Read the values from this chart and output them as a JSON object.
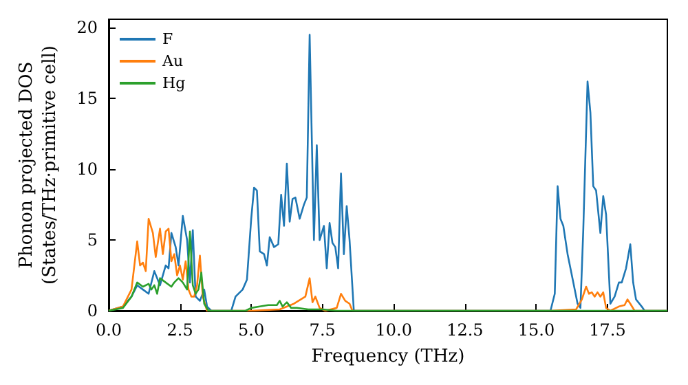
{
  "chart_data": {
    "type": "line",
    "xlabel": "Frequency (THz)",
    "ylabel": "Phonon projected DOS\n(States/THz·primitive cell)",
    "xlim": [
      0,
      19.6
    ],
    "ylim": [
      0,
      20.6
    ],
    "xticks": [
      {
        "value": 0,
        "label": "0.0"
      },
      {
        "value": 2.5,
        "label": "2.5"
      },
      {
        "value": 5,
        "label": "5.0"
      },
      {
        "value": 7.5,
        "label": "7.5"
      },
      {
        "value": 10,
        "label": "10.0"
      },
      {
        "value": 12.5,
        "label": "12.5"
      },
      {
        "value": 15,
        "label": "15.0"
      },
      {
        "value": 17.5,
        "label": "17.5"
      }
    ],
    "yticks": [
      0,
      5,
      10,
      15,
      20
    ],
    "grid": false,
    "legend": "top left",
    "marker": "none",
    "line_style": "solid",
    "series": [
      {
        "name": "F",
        "color": "#1f77b4",
        "x": [
          0,
          0.5,
          0.8,
          1.0,
          1.2,
          1.4,
          1.6,
          1.8,
          2.0,
          2.1,
          2.2,
          2.35,
          2.45,
          2.6,
          2.75,
          2.85,
          2.95,
          3.05,
          3.2,
          3.35,
          3.45,
          3.6,
          4.3,
          4.45,
          4.7,
          4.85,
          5.0,
          5.1,
          5.2,
          5.3,
          5.45,
          5.55,
          5.65,
          5.8,
          5.95,
          6.05,
          6.15,
          6.25,
          6.35,
          6.45,
          6.55,
          6.7,
          6.85,
          6.95,
          7.05,
          7.2,
          7.3,
          7.4,
          7.55,
          7.65,
          7.75,
          7.85,
          7.95,
          8.05,
          8.15,
          8.25,
          8.35,
          8.45,
          8.6,
          15.5,
          15.65,
          15.75,
          15.85,
          15.95,
          16.1,
          16.3,
          16.45,
          16.55,
          16.65,
          16.8,
          16.9,
          17.0,
          17.1,
          17.25,
          17.35,
          17.45,
          17.6,
          17.75,
          17.9,
          18.0,
          18.15,
          18.3,
          18.4,
          18.5,
          18.7,
          18.8,
          19.6
        ],
        "values": [
          0,
          0.3,
          1.0,
          1.8,
          1.5,
          1.2,
          2.8,
          1.8,
          3.2,
          3.0,
          5.5,
          4.5,
          3.2,
          6.7,
          5.0,
          2.0,
          5.7,
          1.0,
          0.7,
          1.5,
          0.3,
          0,
          0,
          1.0,
          1.5,
          2.2,
          6.5,
          8.7,
          8.5,
          4.2,
          4.0,
          3.2,
          5.2,
          4.5,
          4.7,
          8.2,
          6.0,
          10.4,
          6.3,
          7.9,
          8.0,
          6.5,
          7.5,
          8.0,
          19.5,
          5.0,
          11.7,
          5.0,
          6.0,
          3.0,
          6.2,
          4.8,
          4.5,
          3.0,
          9.7,
          4.0,
          7.4,
          5.0,
          0,
          0,
          1.2,
          8.8,
          6.5,
          6.0,
          4.0,
          2.0,
          0.5,
          0.2,
          5.7,
          16.2,
          14.0,
          8.8,
          8.5,
          5.5,
          8.1,
          6.8,
          0.5,
          1.0,
          2.0,
          2.0,
          3.0,
          4.7,
          2.0,
          0.8,
          0.3,
          0,
          0
        ]
      },
      {
        "name": "Au",
        "color": "#ff7f0e",
        "x": [
          0,
          0.5,
          0.8,
          1.0,
          1.1,
          1.2,
          1.3,
          1.4,
          1.55,
          1.65,
          1.8,
          1.9,
          2.0,
          2.1,
          2.2,
          2.3,
          2.4,
          2.5,
          2.6,
          2.7,
          2.8,
          2.9,
          3.0,
          3.1,
          3.2,
          3.3,
          3.45,
          5.0,
          6.0,
          6.5,
          6.9,
          7.05,
          7.15,
          7.25,
          7.4,
          7.6,
          8.0,
          8.15,
          8.3,
          8.45,
          8.55,
          15.5,
          16.4,
          16.6,
          16.75,
          16.85,
          16.95,
          17.05,
          17.15,
          17.25,
          17.35,
          17.45,
          17.6,
          17.9,
          18.1,
          18.2,
          18.3,
          18.45,
          19.6
        ],
        "values": [
          0,
          0.3,
          1.5,
          4.9,
          3.2,
          3.4,
          2.8,
          6.5,
          5.5,
          3.8,
          5.8,
          4.0,
          5.6,
          5.8,
          3.5,
          4.0,
          2.5,
          3.2,
          2.2,
          3.5,
          1.5,
          1.0,
          1.0,
          1.8,
          3.9,
          1.0,
          0,
          0,
          0.1,
          0.5,
          1.0,
          2.3,
          0.6,
          1.0,
          0.2,
          0,
          0.2,
          1.2,
          0.7,
          0.5,
          0,
          0,
          0.1,
          0.8,
          1.7,
          1.2,
          1.3,
          1.0,
          1.3,
          1.0,
          1.3,
          0.2,
          0,
          0.3,
          0.4,
          0.8,
          0.5,
          0,
          0
        ]
      },
      {
        "name": "Hg",
        "color": "#2ca02c",
        "x": [
          0,
          0.5,
          0.8,
          1.0,
          1.2,
          1.4,
          1.5,
          1.6,
          1.7,
          1.8,
          2.0,
          2.2,
          2.3,
          2.45,
          2.6,
          2.75,
          2.85,
          2.95,
          3.05,
          3.15,
          3.25,
          3.35,
          3.5,
          4.8,
          5.0,
          5.3,
          5.6,
          5.9,
          6.0,
          6.1,
          6.25,
          6.4,
          6.6,
          7.0,
          7.5,
          8.0,
          19.6
        ],
        "values": [
          0,
          0.2,
          1.0,
          2.0,
          1.7,
          1.9,
          1.5,
          1.8,
          1.2,
          2.3,
          2.0,
          1.7,
          2.0,
          2.3,
          2.0,
          1.5,
          5.6,
          1.8,
          1.2,
          1.5,
          2.7,
          0.5,
          0,
          0,
          0.2,
          0.3,
          0.4,
          0.4,
          0.7,
          0.3,
          0.6,
          0.2,
          0.2,
          0.1,
          0.1,
          0,
          0
        ]
      }
    ]
  }
}
